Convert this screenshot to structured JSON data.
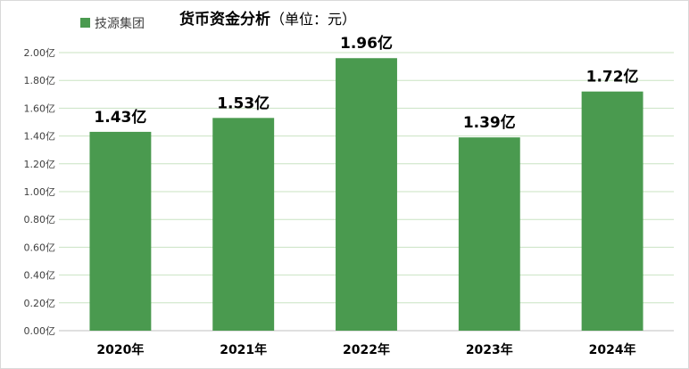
{
  "chart_data": {
    "type": "bar",
    "title": "货币资金分析",
    "subtitle": "（单位：元）",
    "categories": [
      "2020年",
      "2021年",
      "2022年",
      "2023年",
      "2024年"
    ],
    "series": [
      {
        "name": "技源集团",
        "color": "#4a9a4f",
        "values": [
          1.43,
          1.53,
          1.96,
          1.39,
          1.72
        ],
        "value_labels": [
          "1.43亿",
          "1.53亿",
          "1.96亿",
          "1.39亿",
          "1.72亿"
        ]
      }
    ],
    "ylim": [
      0,
      2
    ],
    "yticks": [
      0,
      0.2,
      0.4,
      0.6,
      0.8,
      1.0,
      1.2,
      1.4,
      1.6,
      1.8,
      2.0
    ],
    "ytick_labels": [
      "0.00亿",
      "0.20亿",
      "0.40亿",
      "0.60亿",
      "0.80亿",
      "1.00亿",
      "1.20亿",
      "1.40亿",
      "1.60亿",
      "1.80亿",
      "2.00亿"
    ],
    "xlabel": "",
    "ylabel": "",
    "grid": true,
    "legend_position": "top-left"
  }
}
